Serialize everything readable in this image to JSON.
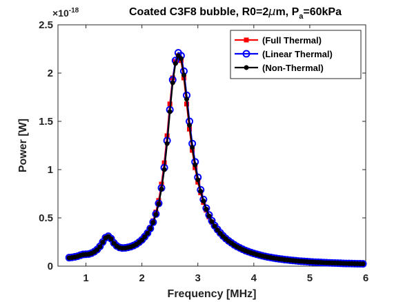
{
  "chart_data": {
    "type": "line",
    "title": {
      "main": "Coated C3F8 bubble, R0=2",
      "mu": "μ",
      "after_mu": "m, P",
      "sub": "a",
      "tail": "=60kPa"
    },
    "xlabel": "Frequency [MHz]",
    "ylabel": "Power [W]",
    "xlim": [
      0.5,
      6
    ],
    "ylim": [
      0,
      2.5
    ],
    "xticks": [
      1,
      2,
      3,
      4,
      5,
      6
    ],
    "yticks": [
      0,
      0.5,
      1,
      1.5,
      2,
      2.5
    ],
    "xtick_labels": [
      "1",
      "2",
      "3",
      "4",
      "5",
      "6"
    ],
    "ytick_labels": [
      "0",
      "0.5",
      "1",
      "1.5",
      "2",
      "2.5"
    ],
    "y_exponent": {
      "prefix": "×10",
      "power": "-18"
    },
    "grid": false,
    "legend_position": "top-right",
    "x_step": 0.05,
    "series": [
      {
        "name": "(Full Thermal)",
        "color": "#ff0000",
        "marker": "square",
        "x0": 0.7,
        "values": [
          0.085,
          0.088,
          0.093,
          0.1,
          0.11,
          0.118,
          0.12,
          0.123,
          0.132,
          0.147,
          0.168,
          0.2,
          0.245,
          0.29,
          0.305,
          0.28,
          0.235,
          0.205,
          0.19,
          0.185,
          0.186,
          0.192,
          0.2,
          0.212,
          0.228,
          0.25,
          0.275,
          0.31,
          0.35,
          0.4,
          0.47,
          0.56,
          0.68,
          0.85,
          1.07,
          1.35,
          1.68,
          1.95,
          2.12,
          2.18,
          2.13,
          1.95,
          1.68,
          1.42,
          1.2,
          1.02,
          0.87,
          0.76,
          0.66,
          0.58,
          0.51,
          0.455,
          0.41,
          0.37,
          0.335,
          0.305,
          0.28,
          0.255,
          0.235,
          0.215,
          0.198,
          0.183,
          0.17,
          0.158,
          0.147,
          0.137,
          0.128,
          0.12,
          0.112,
          0.105,
          0.099,
          0.093,
          0.088,
          0.083,
          0.078,
          0.074,
          0.07,
          0.066,
          0.063,
          0.06,
          0.057,
          0.054,
          0.052,
          0.05,
          0.048,
          0.046,
          0.044,
          0.042,
          0.04,
          0.039,
          0.037,
          0.036,
          0.035,
          0.034,
          0.033,
          0.032,
          0.031,
          0.03,
          0.029,
          0.028,
          0.027,
          0.026,
          0.026,
          0.025,
          0.024,
          0.024
        ]
      },
      {
        "name": "(Linear Thermal)",
        "color": "#0000ff",
        "marker": "circle",
        "x0": 0.7,
        "values": [
          0.088,
          0.091,
          0.096,
          0.103,
          0.113,
          0.121,
          0.123,
          0.126,
          0.135,
          0.15,
          0.172,
          0.205,
          0.25,
          0.295,
          0.31,
          0.285,
          0.24,
          0.21,
          0.194,
          0.188,
          0.189,
          0.195,
          0.202,
          0.213,
          0.228,
          0.248,
          0.272,
          0.305,
          0.342,
          0.39,
          0.455,
          0.54,
          0.65,
          0.81,
          1.02,
          1.3,
          1.62,
          1.93,
          2.13,
          2.21,
          2.18,
          2.02,
          1.77,
          1.5,
          1.27,
          1.08,
          0.92,
          0.79,
          0.69,
          0.6,
          0.53,
          0.47,
          0.42,
          0.38,
          0.345,
          0.313,
          0.286,
          0.262,
          0.241,
          0.221,
          0.204,
          0.189,
          0.175,
          0.162,
          0.151,
          0.141,
          0.131,
          0.123,
          0.115,
          0.108,
          0.101,
          0.095,
          0.09,
          0.085,
          0.08,
          0.076,
          0.072,
          0.068,
          0.065,
          0.062,
          0.059,
          0.056,
          0.053,
          0.051,
          0.049,
          0.047,
          0.045,
          0.043,
          0.041,
          0.04,
          0.038,
          0.037,
          0.036,
          0.034,
          0.033,
          0.032,
          0.031,
          0.03,
          0.029,
          0.028,
          0.028,
          0.027,
          0.026,
          0.025,
          0.025,
          0.024
        ]
      },
      {
        "name": "(Non-Thermal)",
        "color": "#000000",
        "marker": "dot",
        "x0": 0.7,
        "values": [
          0.086,
          0.089,
          0.094,
          0.101,
          0.111,
          0.119,
          0.121,
          0.124,
          0.133,
          0.148,
          0.17,
          0.202,
          0.247,
          0.292,
          0.307,
          0.282,
          0.237,
          0.207,
          0.191,
          0.186,
          0.187,
          0.193,
          0.2,
          0.211,
          0.226,
          0.246,
          0.27,
          0.303,
          0.34,
          0.388,
          0.452,
          0.535,
          0.645,
          0.8,
          1.0,
          1.27,
          1.6,
          1.9,
          2.1,
          2.18,
          2.15,
          1.98,
          1.73,
          1.46,
          1.23,
          1.05,
          0.895,
          0.775,
          0.675,
          0.59,
          0.52,
          0.462,
          0.415,
          0.375,
          0.34,
          0.309,
          0.283,
          0.259,
          0.238,
          0.218,
          0.201,
          0.186,
          0.172,
          0.16,
          0.149,
          0.139,
          0.13,
          0.121,
          0.113,
          0.106,
          0.1,
          0.094,
          0.089,
          0.084,
          0.079,
          0.075,
          0.071,
          0.067,
          0.064,
          0.061,
          0.058,
          0.055,
          0.053,
          0.05,
          0.048,
          0.046,
          0.044,
          0.043,
          0.041,
          0.039,
          0.038,
          0.036,
          0.035,
          0.034,
          0.033,
          0.032,
          0.031,
          0.03,
          0.029,
          0.028,
          0.027,
          0.027,
          0.026,
          0.025,
          0.024,
          0.024
        ]
      }
    ]
  }
}
